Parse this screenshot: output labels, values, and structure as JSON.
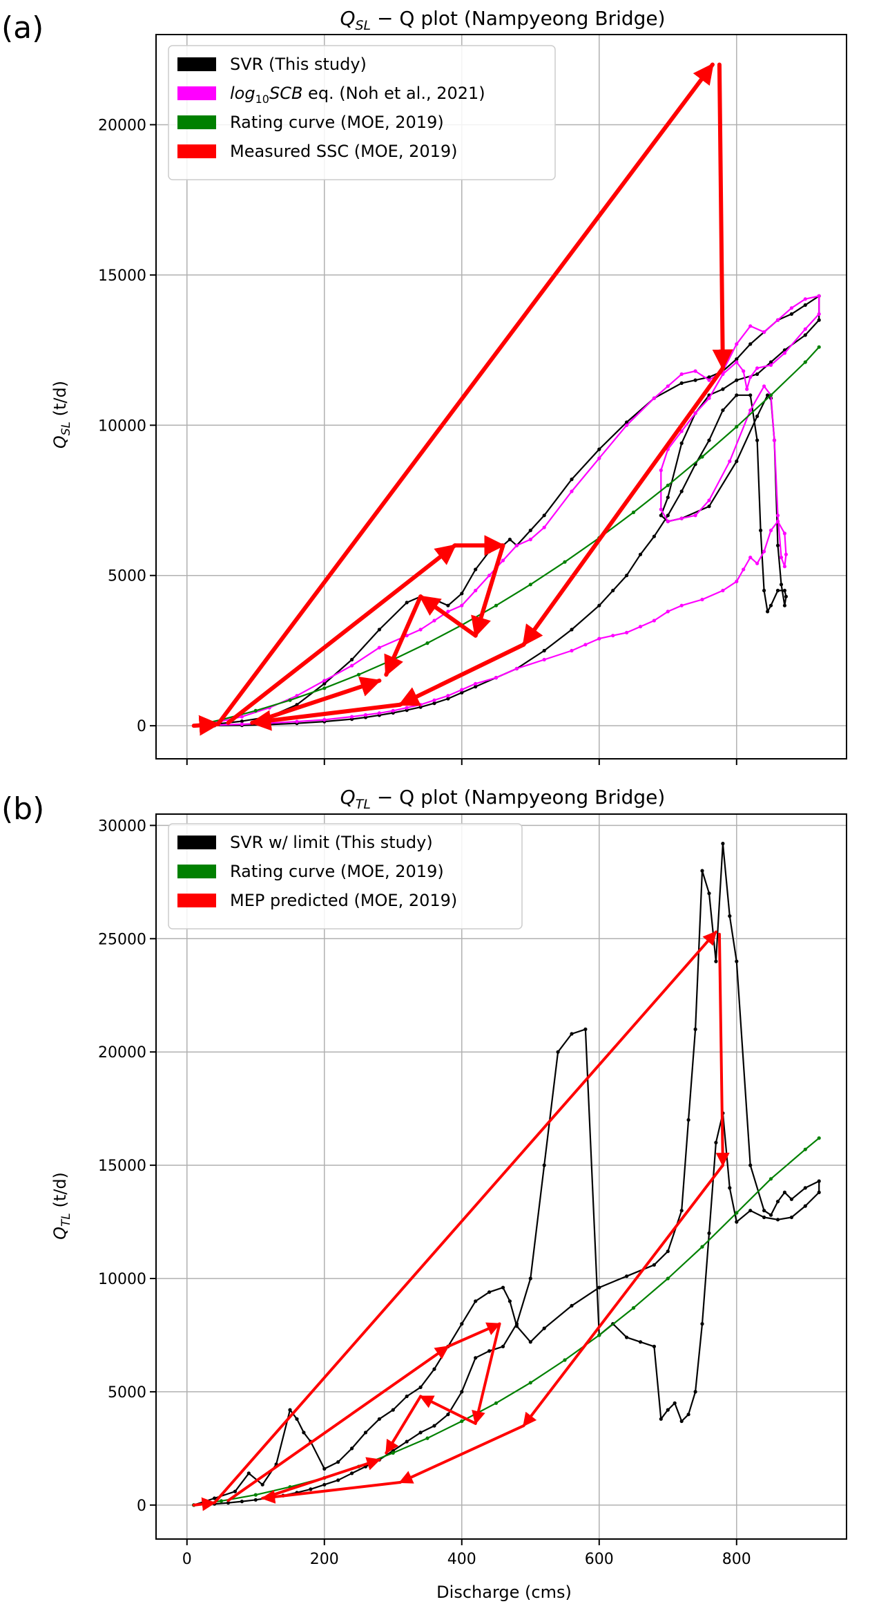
{
  "chart_data": [
    {
      "panel_label": "(a)",
      "type": "line",
      "title_main": "Q",
      "title_sub": "SL",
      "title_rest": " − Q plot (Nampyeong Bridge)",
      "ylabel_main": "Q",
      "ylabel_sub": "SL",
      "ylabel_unit": " (t/d)",
      "xlim": [
        -45,
        960
      ],
      "ylim": [
        -1100,
        23000
      ],
      "yticks": [
        0,
        5000,
        10000,
        15000,
        20000
      ],
      "xticks": [
        0,
        200,
        400,
        600,
        800
      ],
      "show_xtick_labels": false,
      "grid": true,
      "legend_position": "top-left",
      "legend": [
        {
          "label": "SVR (This study)",
          "color": "#000000"
        },
        {
          "label_prefix": "log",
          "label_sub": "10",
          "label_italic": "SCB",
          "label_rest": " eq. (Noh et al., 2021)",
          "color": "#ff00ff"
        },
        {
          "label": "Rating curve (MOE, 2019)",
          "color": "#008000"
        },
        {
          "label": "Measured SSC (MOE, 2019)",
          "color": "#ff0000"
        }
      ],
      "series": [
        {
          "name": "SVR (This study)",
          "color": "#000000",
          "x": [
            10,
            40,
            80,
            120,
            160,
            200,
            240,
            280,
            320,
            340,
            360,
            380,
            400,
            420,
            440,
            460,
            470,
            480,
            500,
            520,
            560,
            600,
            640,
            680,
            720,
            740,
            760,
            780,
            800,
            820,
            840,
            860,
            880,
            900,
            920,
            920,
            900,
            870,
            850,
            830,
            800,
            780,
            760,
            740,
            720,
            700,
            690,
            700,
            720,
            760,
            800,
            830,
            845,
            850,
            855,
            860,
            865,
            870,
            872,
            870,
            860,
            850,
            845,
            840,
            835,
            830,
            820,
            800,
            780,
            760,
            740,
            720,
            700,
            680,
            660,
            640,
            620,
            600,
            560,
            520,
            480,
            450,
            420,
            400,
            380,
            360,
            340,
            320,
            300,
            280,
            260,
            240,
            200,
            160,
            120,
            80,
            40,
            10
          ],
          "y": [
            0,
            50,
            150,
            300,
            700,
            1400,
            2200,
            3200,
            4100,
            4300,
            4200,
            4000,
            4400,
            5200,
            5800,
            6000,
            6200,
            6000,
            6500,
            7000,
            8200,
            9200,
            10100,
            10900,
            11400,
            11500,
            11600,
            11800,
            12200,
            12700,
            13100,
            13500,
            13700,
            14000,
            14300,
            13500,
            13000,
            12500,
            12100,
            11700,
            11500,
            11200,
            11000,
            10400,
            9400,
            7600,
            7000,
            6800,
            6900,
            7300,
            8800,
            10300,
            11000,
            10900,
            9500,
            6000,
            4700,
            4000,
            4300,
            4500,
            4500,
            4000,
            3800,
            4500,
            6500,
            9500,
            11000,
            11000,
            10500,
            9500,
            8700,
            7800,
            7000,
            6300,
            5700,
            5000,
            4500,
            4000,
            3200,
            2500,
            1900,
            1600,
            1300,
            1100,
            900,
            750,
            620,
            520,
            430,
            350,
            280,
            220,
            140,
            80,
            40,
            15,
            5,
            0
          ]
        },
        {
          "name": "log10SCB eq. (Noh et al., 2021)",
          "color": "#ff00ff",
          "x": [
            10,
            40,
            80,
            120,
            160,
            200,
            240,
            280,
            320,
            340,
            360,
            380,
            400,
            420,
            440,
            460,
            480,
            500,
            520,
            560,
            600,
            640,
            680,
            700,
            720,
            740,
            760,
            780,
            800,
            820,
            840,
            860,
            880,
            900,
            920,
            920,
            900,
            870,
            850,
            830,
            820,
            815,
            810,
            800,
            780,
            760,
            740,
            720,
            700,
            690,
            690,
            700,
            720,
            740,
            760,
            790,
            820,
            840,
            850,
            855,
            860,
            865,
            870,
            872,
            870,
            860,
            850,
            840,
            830,
            820,
            810,
            800,
            780,
            750,
            720,
            700,
            680,
            660,
            640,
            620,
            600,
            580,
            560,
            520,
            480,
            450,
            420,
            400,
            380,
            360,
            340,
            320,
            300,
            280,
            260,
            240,
            200,
            160,
            120,
            80,
            40,
            10
          ],
          "y": [
            0,
            100,
            300,
            600,
            1000,
            1500,
            2000,
            2600,
            3000,
            3200,
            3500,
            3800,
            4000,
            4500,
            5000,
            5500,
            6000,
            6200,
            6600,
            7800,
            8900,
            10000,
            10900,
            11300,
            11700,
            11800,
            11500,
            11800,
            12700,
            13300,
            13100,
            13500,
            13900,
            14200,
            14300,
            13700,
            13200,
            12400,
            12000,
            11900,
            11600,
            11200,
            11800,
            12100,
            11700,
            10900,
            10400,
            9800,
            9200,
            8500,
            7200,
            6800,
            6900,
            7000,
            7500,
            8800,
            10500,
            11300,
            11000,
            9500,
            7000,
            5600,
            5300,
            5700,
            6400,
            6800,
            6500,
            5800,
            5400,
            5600,
            5200,
            4800,
            4500,
            4200,
            4000,
            3800,
            3500,
            3300,
            3100,
            3000,
            2900,
            2700,
            2500,
            2200,
            1900,
            1600,
            1400,
            1200,
            1000,
            850,
            700,
            600,
            500,
            420,
            360,
            300,
            200,
            140,
            90,
            50,
            20,
            0
          ]
        },
        {
          "name": "Rating curve (MOE, 2019)",
          "color": "#008000",
          "x": [
            10,
            50,
            100,
            150,
            200,
            250,
            300,
            350,
            400,
            450,
            500,
            550,
            600,
            650,
            700,
            750,
            800,
            850,
            900,
            920
          ],
          "y": [
            0,
            200,
            500,
            850,
            1250,
            1700,
            2200,
            2750,
            3350,
            4000,
            4700,
            5450,
            6250,
            7100,
            8000,
            8950,
            9950,
            11000,
            12100,
            12600
          ]
        },
        {
          "name": "Measured SSC (MOE, 2019)",
          "color": "#ff0000",
          "arrows": [
            {
              "x1": 10,
              "y1": 0,
              "x2": 45,
              "y2": 50
            },
            {
              "x1": 45,
              "y1": 50,
              "x2": 765,
              "y2": 22000
            },
            {
              "x1": 775,
              "y1": 22000,
              "x2": 780,
              "y2": 11900
            },
            {
              "x1": 780,
              "y1": 11900,
              "x2": 490,
              "y2": 2700
            },
            {
              "x1": 490,
              "y1": 2700,
              "x2": 310,
              "y2": 700
            },
            {
              "x1": 310,
              "y1": 700,
              "x2": 95,
              "y2": 100
            },
            {
              "x1": 95,
              "y1": 100,
              "x2": 280,
              "y2": 1500
            },
            {
              "x1": 60,
              "y1": 100,
              "x2": 390,
              "y2": 6000
            },
            {
              "x1": 390,
              "y1": 6000,
              "x2": 460,
              "y2": 6000
            },
            {
              "x1": 460,
              "y1": 6000,
              "x2": 420,
              "y2": 3000
            },
            {
              "x1": 420,
              "y1": 3000,
              "x2": 340,
              "y2": 4300
            },
            {
              "x1": 340,
              "y1": 4300,
              "x2": 290,
              "y2": 1700
            }
          ]
        }
      ]
    },
    {
      "panel_label": "(b)",
      "type": "line",
      "title_main": "Q",
      "title_sub": "TL",
      "title_rest": " − Q plot (Nampyeong Bridge)",
      "ylabel_main": "Q",
      "ylabel_sub": "TL",
      "ylabel_unit": " (t/d)",
      "xlabel": "Discharge (cms)",
      "xlim": [
        -45,
        960
      ],
      "ylim": [
        -1500,
        30500
      ],
      "yticks": [
        0,
        5000,
        10000,
        15000,
        20000,
        25000,
        30000
      ],
      "xticks": [
        0,
        200,
        400,
        600,
        800
      ],
      "show_xtick_labels": true,
      "grid": true,
      "legend_position": "top-left",
      "legend": [
        {
          "label": "SVR w/ limit (This study)",
          "color": "#000000"
        },
        {
          "label": "Rating curve (MOE, 2019)",
          "color": "#008000"
        },
        {
          "label": "MEP predicted (MOE, 2019)",
          "color": "#ff0000"
        }
      ],
      "series": [
        {
          "name": "SVR w/ limit (This study)",
          "color": "#000000",
          "x": [
            10,
            40,
            70,
            90,
            110,
            130,
            150,
            160,
            170,
            180,
            200,
            220,
            240,
            260,
            280,
            300,
            320,
            340,
            360,
            380,
            400,
            420,
            440,
            460,
            470,
            480,
            500,
            520,
            560,
            600,
            640,
            680,
            700,
            720,
            730,
            740,
            750,
            760,
            770,
            780,
            790,
            800,
            820,
            840,
            850,
            860,
            870,
            880,
            900,
            920,
            920,
            900,
            880,
            860,
            840,
            820,
            800,
            790,
            780,
            770,
            760,
            750,
            740,
            730,
            720,
            710,
            700,
            690,
            680,
            660,
            640,
            620,
            600,
            580,
            560,
            540,
            520,
            500,
            480,
            460,
            440,
            420,
            400,
            380,
            360,
            340,
            320,
            300,
            280,
            260,
            240,
            220,
            200,
            180,
            160,
            140,
            120,
            100,
            80,
            60,
            40,
            10
          ],
          "y": [
            0,
            300,
            600,
            1400,
            900,
            1800,
            4200,
            3800,
            3200,
            2800,
            1600,
            1900,
            2500,
            3200,
            3800,
            4200,
            4800,
            5200,
            6000,
            7000,
            8000,
            9000,
            9400,
            9600,
            9000,
            7900,
            7200,
            7800,
            8800,
            9600,
            10100,
            10600,
            11200,
            13000,
            17000,
            21000,
            28000,
            27000,
            24000,
            29200,
            26000,
            24000,
            15000,
            13000,
            12800,
            13400,
            13800,
            13500,
            14000,
            14300,
            13800,
            13200,
            12700,
            12600,
            12700,
            13000,
            12500,
            14000,
            17300,
            16000,
            12000,
            8000,
            5000,
            4000,
            3700,
            4500,
            4200,
            3800,
            7000,
            7200,
            7400,
            8000,
            7500,
            21000,
            20800,
            20000,
            15000,
            10000,
            8000,
            7000,
            6800,
            6500,
            5000,
            4000,
            3500,
            3200,
            2800,
            2400,
            2000,
            1700,
            1400,
            1100,
            900,
            700,
            550,
            420,
            320,
            230,
            160,
            100,
            50,
            0
          ]
        },
        {
          "name": "Rating curve (MOE, 2019)",
          "color": "#008000",
          "x": [
            10,
            50,
            100,
            150,
            200,
            250,
            300,
            350,
            400,
            450,
            500,
            550,
            600,
            650,
            700,
            750,
            800,
            850,
            900,
            920
          ],
          "y": [
            0,
            180,
            450,
            800,
            1200,
            1700,
            2300,
            2950,
            3700,
            4500,
            5400,
            6400,
            7500,
            8700,
            10000,
            11400,
            12900,
            14400,
            15700,
            16200
          ]
        },
        {
          "name": "MEP predicted (MOE, 2019)",
          "color": "#ff0000",
          "arrows": [
            {
              "x1": 10,
              "y1": 0,
              "x2": 40,
              "y2": 100
            },
            {
              "x1": 40,
              "y1": 100,
              "x2": 770,
              "y2": 25300
            },
            {
              "x1": 775,
              "y1": 25200,
              "x2": 780,
              "y2": 15000
            },
            {
              "x1": 780,
              "y1": 15000,
              "x2": 490,
              "y2": 3500
            },
            {
              "x1": 490,
              "y1": 3500,
              "x2": 310,
              "y2": 1000
            },
            {
              "x1": 310,
              "y1": 1000,
              "x2": 110,
              "y2": 300
            },
            {
              "x1": 110,
              "y1": 300,
              "x2": 280,
              "y2": 2000
            },
            {
              "x1": 60,
              "y1": 200,
              "x2": 380,
              "y2": 7000
            },
            {
              "x1": 380,
              "y1": 7000,
              "x2": 455,
              "y2": 8000
            },
            {
              "x1": 455,
              "y1": 8000,
              "x2": 420,
              "y2": 3600
            },
            {
              "x1": 420,
              "y1": 3600,
              "x2": 340,
              "y2": 4800
            },
            {
              "x1": 340,
              "y1": 4800,
              "x2": 290,
              "y2": 2300
            }
          ]
        }
      ]
    }
  ]
}
